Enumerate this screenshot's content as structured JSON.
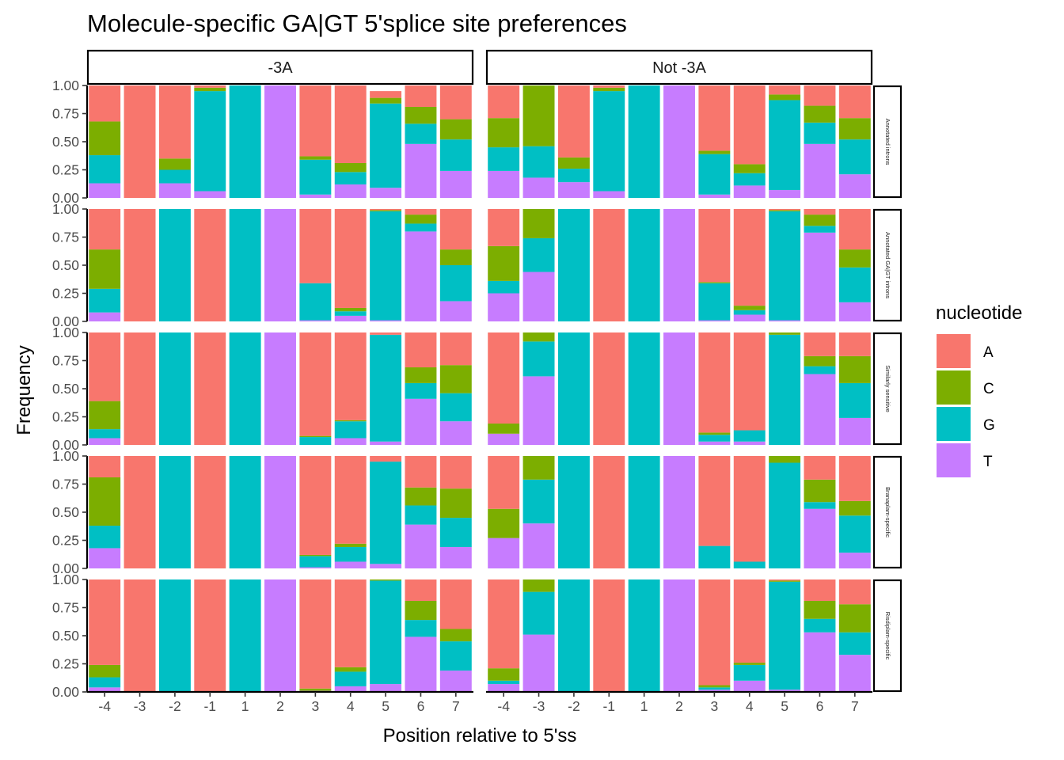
{
  "chart_data": {
    "type": "bar",
    "subtype": "stacked-100-percent-faceted",
    "title": "Molecule-specific GA|GT 5'splice site preferences",
    "xlabel": "Position relative to 5'ss",
    "ylabel": "Frequency",
    "ylim": [
      0,
      1
    ],
    "y_ticks": [
      "0.00",
      "0.25",
      "0.50",
      "0.75",
      "1.00"
    ],
    "categories": [
      "-4",
      "-3",
      "-2",
      "-1",
      "1",
      "2",
      "3",
      "4",
      "5",
      "6",
      "7"
    ],
    "legend": {
      "title": "nucleotide",
      "position": "right",
      "entries": [
        {
          "name": "A",
          "color": "#F8766D"
        },
        {
          "name": "C",
          "color": "#7CAE00"
        },
        {
          "name": "G",
          "color": "#00BFC4"
        },
        {
          "name": "T",
          "color": "#C77CFF"
        }
      ]
    },
    "columns": [
      "-3A",
      "Not -3A"
    ],
    "rows": [
      "Annotated introns",
      "Annotated GA|GT introns",
      "Similarly sensitive",
      "Branaplam-specific",
      "Risdiplam-specific"
    ],
    "stack_order_top_to_bottom": [
      "A",
      "C",
      "G",
      "T"
    ],
    "panels": [
      {
        "row": "Annotated introns",
        "column": "-3A",
        "data": {
          "A": [
            0.32,
            1.0,
            0.65,
            0.02,
            0.0,
            0.0,
            0.63,
            0.69,
            0.06,
            0.19,
            0.3
          ],
          "C": [
            0.3,
            0.0,
            0.1,
            0.03,
            0.0,
            0.0,
            0.03,
            0.08,
            0.05,
            0.15,
            0.18
          ],
          "G": [
            0.25,
            0.0,
            0.12,
            0.89,
            1.0,
            0.0,
            0.31,
            0.11,
            0.75,
            0.18,
            0.28
          ],
          "T": [
            0.13,
            0.0,
            0.13,
            0.06,
            0.0,
            1.0,
            0.03,
            0.12,
            0.09,
            0.48,
            0.24
          ]
        }
      },
      {
        "row": "Annotated introns",
        "column": "Not -3A",
        "data": {
          "A": [
            0.29,
            0.0,
            0.64,
            0.02,
            0.0,
            0.0,
            0.58,
            0.7,
            0.08,
            0.18,
            0.29
          ],
          "C": [
            0.26,
            0.54,
            0.1,
            0.03,
            0.0,
            0.0,
            0.03,
            0.08,
            0.05,
            0.15,
            0.19
          ],
          "G": [
            0.21,
            0.28,
            0.12,
            0.89,
            1.0,
            0.0,
            0.36,
            0.11,
            0.8,
            0.19,
            0.31
          ],
          "T": [
            0.24,
            0.18,
            0.14,
            0.06,
            0.0,
            1.0,
            0.03,
            0.11,
            0.07,
            0.48,
            0.21
          ]
        }
      },
      {
        "row": "Annotated GA|GT introns",
        "column": "-3A",
        "data": {
          "A": [
            0.36,
            1.0,
            0.0,
            1.0,
            0.0,
            0.0,
            0.66,
            0.88,
            0.01,
            0.05,
            0.36
          ],
          "C": [
            0.35,
            0.0,
            0.0,
            0.0,
            0.0,
            0.0,
            0.0,
            0.03,
            0.01,
            0.08,
            0.14
          ],
          "G": [
            0.21,
            0.0,
            1.0,
            0.0,
            1.0,
            0.0,
            0.33,
            0.04,
            0.97,
            0.07,
            0.32
          ],
          "T": [
            0.08,
            0.0,
            0.0,
            0.0,
            0.0,
            1.0,
            0.01,
            0.05,
            0.01,
            0.8,
            0.18
          ]
        }
      },
      {
        "row": "Annotated GA|GT introns",
        "column": "Not -3A",
        "data": {
          "A": [
            0.33,
            0.0,
            0.0,
            1.0,
            0.0,
            0.0,
            0.65,
            0.86,
            0.01,
            0.05,
            0.36
          ],
          "C": [
            0.31,
            0.26,
            0.0,
            0.0,
            0.0,
            0.0,
            0.01,
            0.04,
            0.01,
            0.1,
            0.16
          ],
          "G": [
            0.11,
            0.3,
            1.0,
            0.0,
            1.0,
            0.0,
            0.33,
            0.04,
            0.97,
            0.06,
            0.31
          ],
          "T": [
            0.25,
            0.44,
            0.0,
            0.0,
            0.0,
            1.0,
            0.01,
            0.06,
            0.01,
            0.79,
            0.17
          ]
        }
      },
      {
        "row": "Similarly sensitive",
        "column": "-3A",
        "data": {
          "A": [
            0.61,
            1.0,
            0.0,
            1.0,
            0.0,
            0.0,
            0.92,
            0.78,
            0.02,
            0.31,
            0.29
          ],
          "C": [
            0.25,
            0.0,
            0.0,
            0.0,
            0.0,
            0.0,
            0.01,
            0.01,
            0.0,
            0.14,
            0.25
          ],
          "G": [
            0.08,
            0.0,
            1.0,
            0.0,
            1.0,
            0.0,
            0.07,
            0.15,
            0.95,
            0.14,
            0.25
          ],
          "T": [
            0.06,
            0.0,
            0.0,
            0.0,
            0.0,
            1.0,
            0.0,
            0.06,
            0.03,
            0.41,
            0.21
          ]
        }
      },
      {
        "row": "Similarly sensitive",
        "column": "Not -3A",
        "data": {
          "A": [
            0.81,
            0.0,
            0.0,
            1.0,
            0.0,
            0.0,
            0.89,
            0.87,
            0.0,
            0.21,
            0.21
          ],
          "C": [
            0.09,
            0.08,
            0.0,
            0.0,
            0.0,
            0.0,
            0.02,
            0.0,
            0.02,
            0.09,
            0.24
          ],
          "G": [
            0.0,
            0.31,
            1.0,
            0.0,
            1.0,
            0.0,
            0.06,
            0.1,
            0.98,
            0.07,
            0.31
          ],
          "T": [
            0.1,
            0.61,
            0.0,
            0.0,
            0.0,
            1.0,
            0.03,
            0.03,
            0.0,
            0.63,
            0.24
          ]
        }
      },
      {
        "row": "Branaplam-specific",
        "column": "-3A",
        "data": {
          "A": [
            0.19,
            1.0,
            0.0,
            1.0,
            0.0,
            0.0,
            0.88,
            0.78,
            0.05,
            0.28,
            0.29
          ],
          "C": [
            0.43,
            0.0,
            0.0,
            0.0,
            0.0,
            0.0,
            0.01,
            0.03,
            0.0,
            0.16,
            0.26
          ],
          "G": [
            0.2,
            0.0,
            1.0,
            0.0,
            1.0,
            0.0,
            0.1,
            0.13,
            0.91,
            0.17,
            0.26
          ],
          "T": [
            0.18,
            0.0,
            0.0,
            0.0,
            0.0,
            1.0,
            0.01,
            0.06,
            0.04,
            0.39,
            0.19
          ]
        }
      },
      {
        "row": "Branaplam-specific",
        "column": "Not -3A",
        "data": {
          "A": [
            0.47,
            0.0,
            0.0,
            1.0,
            0.0,
            0.0,
            0.8,
            0.94,
            0.0,
            0.21,
            0.4
          ],
          "C": [
            0.26,
            0.21,
            0.0,
            0.0,
            0.0,
            0.0,
            0.0,
            0.0,
            0.06,
            0.2,
            0.13
          ],
          "G": [
            0.0,
            0.39,
            1.0,
            0.0,
            1.0,
            0.0,
            0.2,
            0.06,
            0.94,
            0.06,
            0.33
          ],
          "T": [
            0.27,
            0.4,
            0.0,
            0.0,
            0.0,
            1.0,
            0.0,
            0.0,
            0.0,
            0.53,
            0.14
          ]
        }
      },
      {
        "row": "Risdiplam-specific",
        "column": "-3A",
        "data": {
          "A": [
            0.76,
            1.0,
            0.0,
            1.0,
            0.0,
            0.0,
            0.97,
            0.78,
            0.0,
            0.19,
            0.44
          ],
          "C": [
            0.11,
            0.0,
            0.0,
            0.0,
            0.0,
            0.0,
            0.02,
            0.04,
            0.01,
            0.17,
            0.11
          ],
          "G": [
            0.09,
            0.0,
            1.0,
            0.0,
            1.0,
            0.0,
            0.0,
            0.13,
            0.92,
            0.15,
            0.26
          ],
          "T": [
            0.04,
            0.0,
            0.0,
            0.0,
            0.0,
            1.0,
            0.01,
            0.05,
            0.07,
            0.49,
            0.19
          ]
        }
      },
      {
        "row": "Risdiplam-specific",
        "column": "Not -3A",
        "data": {
          "A": [
            0.79,
            0.0,
            0.0,
            1.0,
            0.0,
            0.0,
            0.94,
            0.74,
            0.01,
            0.19,
            0.22
          ],
          "C": [
            0.11,
            0.11,
            0.0,
            0.0,
            0.0,
            0.0,
            0.02,
            0.02,
            0.01,
            0.16,
            0.25
          ],
          "G": [
            0.03,
            0.38,
            1.0,
            0.0,
            1.0,
            0.0,
            0.02,
            0.14,
            0.96,
            0.12,
            0.2
          ],
          "T": [
            0.07,
            0.51,
            0.0,
            0.0,
            0.0,
            1.0,
            0.02,
            0.1,
            0.02,
            0.53,
            0.33
          ]
        }
      }
    ]
  }
}
